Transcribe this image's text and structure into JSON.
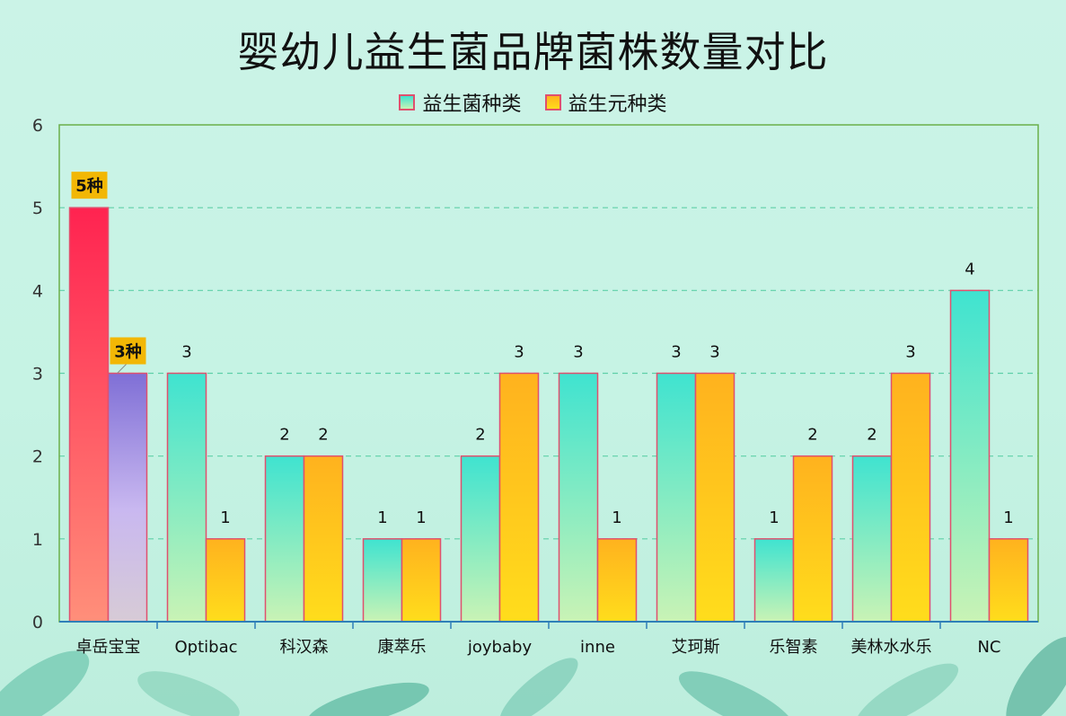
{
  "chart_data": {
    "type": "bar",
    "title": "婴幼儿益生菌品牌菌株数量对比",
    "categories": [
      "卓岳宝宝",
      "Optibac",
      "科汉森",
      "康萃乐",
      "joybaby",
      "inne",
      "艾珂斯",
      "乐智素",
      "美林水水乐",
      "NC"
    ],
    "series": [
      {
        "name": "益生菌种类",
        "values": [
          5,
          3,
          2,
          1,
          2,
          3,
          3,
          1,
          2,
          4
        ]
      },
      {
        "name": "益生元种类",
        "values": [
          3,
          1,
          2,
          1,
          3,
          1,
          3,
          2,
          3,
          1
        ]
      }
    ],
    "ylim": [
      0,
      6
    ],
    "yticks": [
      0,
      1,
      2,
      3,
      4,
      5,
      6
    ],
    "grid": true,
    "legend_position": "top-center",
    "highlight": {
      "category": "卓岳宝宝",
      "labels": [
        "5种",
        "3种"
      ],
      "colors": [
        "#ff2b55",
        "#8f7fdc"
      ]
    },
    "colors": {
      "series1_top": "#3fe3d0",
      "series1_bottom": "#c9f3b5",
      "series2_top": "#ffb21e",
      "series2_bottom": "#ffdd1c",
      "bar_border": "#e0506e",
      "label_box": "#f2b705"
    }
  }
}
